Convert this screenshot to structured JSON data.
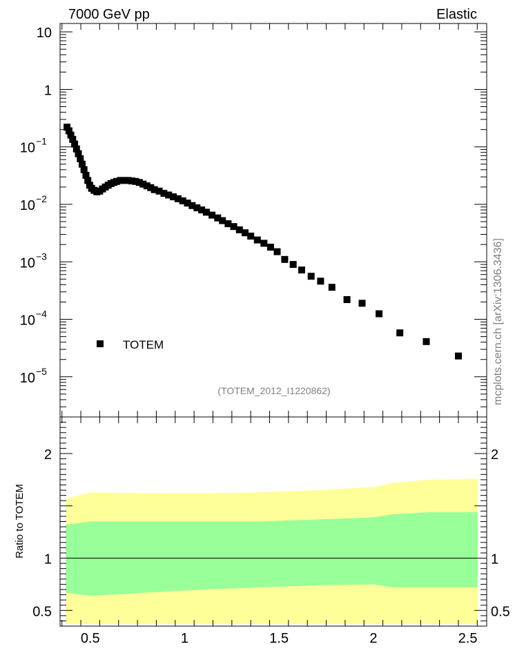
{
  "header": {
    "left": "7000 GeV pp",
    "right": "Elastic"
  },
  "side_label": "mcplots.cern.ch [arXiv:1306.3436]",
  "analysis_tag": "(TOTEM_2012_I1220862)",
  "colors": {
    "marker": "#000000",
    "band_outer": "#ffff99",
    "band_inner": "#99ff99",
    "axis": "#000000",
    "tag": "#808080"
  },
  "chart_data": [
    {
      "type": "scatter",
      "log_y": true,
      "xlim": [
        0.34,
        2.6
      ],
      "ylim": [
        2e-06,
        14
      ],
      "y_tick_values": [
        10,
        1,
        0.1,
        0.01,
        0.001,
        0.0001,
        1e-05
      ],
      "y_tick_labels": [
        {
          "base": "10",
          "exp": ""
        },
        {
          "base": "1",
          "exp": ""
        },
        {
          "base": "10",
          "exp": "−1"
        },
        {
          "base": "10",
          "exp": "−2"
        },
        {
          "base": "10",
          "exp": "−3"
        },
        {
          "base": "10",
          "exp": "−4"
        },
        {
          "base": "10",
          "exp": "−5"
        }
      ],
      "legend": {
        "entry": "TOTEM",
        "position": "bottom-left"
      },
      "series": [
        {
          "name": "TOTEM",
          "points": [
            [
              0.377,
              0.22
            ],
            [
              0.387,
              0.19
            ],
            [
              0.397,
              0.16
            ],
            [
              0.407,
              0.135
            ],
            [
              0.417,
              0.112
            ],
            [
              0.427,
              0.092
            ],
            [
              0.437,
              0.076
            ],
            [
              0.447,
              0.062
            ],
            [
              0.457,
              0.05
            ],
            [
              0.467,
              0.04
            ],
            [
              0.477,
              0.032
            ],
            [
              0.487,
              0.026
            ],
            [
              0.497,
              0.0215
            ],
            [
              0.507,
              0.019
            ],
            [
              0.52,
              0.0175
            ],
            [
              0.535,
              0.0165
            ],
            [
              0.55,
              0.017
            ],
            [
              0.565,
              0.0185
            ],
            [
              0.58,
              0.02
            ],
            [
              0.595,
              0.0215
            ],
            [
              0.61,
              0.023
            ],
            [
              0.625,
              0.024
            ],
            [
              0.64,
              0.025
            ],
            [
              0.66,
              0.026
            ],
            [
              0.68,
              0.026
            ],
            [
              0.7,
              0.026
            ],
            [
              0.72,
              0.0255
            ],
            [
              0.74,
              0.025
            ],
            [
              0.76,
              0.024
            ],
            [
              0.78,
              0.0225
            ],
            [
              0.8,
              0.021
            ],
            [
              0.82,
              0.0195
            ],
            [
              0.84,
              0.018
            ],
            [
              0.865,
              0.017
            ],
            [
              0.89,
              0.0155
            ],
            [
              0.915,
              0.0145
            ],
            [
              0.94,
              0.0135
            ],
            [
              0.965,
              0.0125
            ],
            [
              0.99,
              0.0115
            ],
            [
              1.015,
              0.0105
            ],
            [
              1.04,
              0.0095
            ],
            [
              1.065,
              0.0087
            ],
            [
              1.09,
              0.008
            ],
            [
              1.115,
              0.0073
            ],
            [
              1.145,
              0.0065
            ],
            [
              1.175,
              0.0058
            ],
            [
              1.2,
              0.0052
            ],
            [
              1.23,
              0.0046
            ],
            [
              1.26,
              0.0041
            ],
            [
              1.29,
              0.0036
            ],
            [
              1.32,
              0.0032
            ],
            [
              1.35,
              0.0028
            ],
            [
              1.385,
              0.0024
            ],
            [
              1.42,
              0.0021
            ],
            [
              1.455,
              0.0018
            ],
            [
              1.49,
              0.0015
            ],
            [
              1.53,
              0.0011
            ],
            [
              1.575,
              0.0009
            ],
            [
              1.62,
              0.00072
            ],
            [
              1.67,
              0.00056
            ],
            [
              1.72,
              0.00046
            ],
            [
              1.78,
              0.00036
            ],
            [
              1.86,
              0.00022
            ],
            [
              1.94,
              0.00019
            ],
            [
              2.03,
              0.000125
            ],
            [
              2.14,
              5.8e-05
            ],
            [
              2.28,
              4.1e-05
            ],
            [
              2.45,
              2.3e-05
            ]
          ]
        }
      ]
    },
    {
      "type": "area",
      "xlim": [
        0.34,
        2.6
      ],
      "ylim": [
        0.35,
        2.35
      ],
      "ylabel": "Ratio to TOTEM",
      "y_tick_values": [
        0.5,
        1,
        2
      ],
      "y_tick_labels": [
        "0.5",
        "1",
        "2"
      ],
      "x_tick_values": [
        0.5,
        1,
        1.5,
        2,
        2.5
      ],
      "x_tick_labels": [
        "0.5",
        "1",
        "1.5",
        "2",
        "2.5"
      ],
      "reference_line": 1,
      "series": [
        {
          "name": "",
          "x": [
            0.37,
            0.5,
            0.8,
            1.1,
            1.4,
            1.7,
            2.0,
            2.1,
            2.3,
            2.55
          ],
          "outer_hi": [
            1.57,
            1.63,
            1.62,
            1.62,
            1.63,
            1.65,
            1.68,
            1.72,
            1.75,
            1.76
          ],
          "outer_lo": [
            0.37,
            0.37,
            0.37,
            0.37,
            0.37,
            0.37,
            0.37,
            0.37,
            0.37,
            0.37
          ],
          "inner_hi": [
            1.32,
            1.35,
            1.35,
            1.35,
            1.35,
            1.37,
            1.39,
            1.42,
            1.44,
            1.44
          ],
          "inner_lo": [
            0.67,
            0.64,
            0.67,
            0.7,
            0.72,
            0.74,
            0.75,
            0.72,
            0.72,
            0.72
          ]
        }
      ]
    }
  ]
}
